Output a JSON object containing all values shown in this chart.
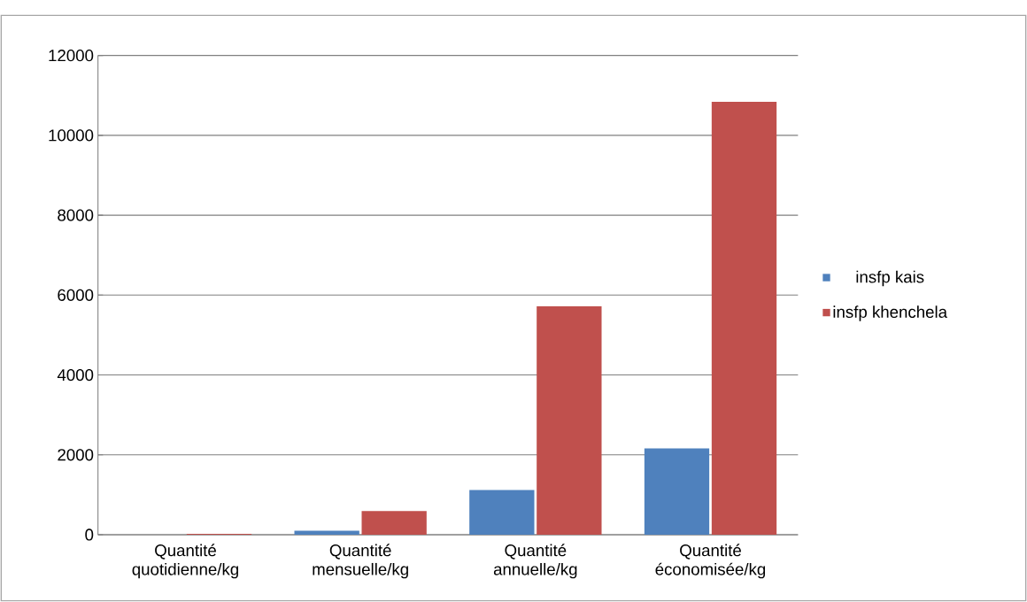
{
  "chart_data": {
    "type": "bar",
    "categories": [
      "Quantité quotidienne/kg",
      "Quantité mensuelle/kg",
      "Quantité annuelle/kg",
      "Quantité économisée/kg"
    ],
    "series": [
      {
        "name": "insfp kais",
        "color": "#4f81bd",
        "values": [
          null,
          100,
          1120,
          2160
        ]
      },
      {
        "name": "insfp khenchela",
        "color": "#c0504d",
        "values": [
          20,
          590,
          5720,
          10840
        ]
      }
    ],
    "ylim": [
      0,
      12000
    ],
    "yticks": [
      0,
      2000,
      4000,
      6000,
      8000,
      10000,
      12000
    ],
    "grid": "y",
    "legend": "right"
  }
}
